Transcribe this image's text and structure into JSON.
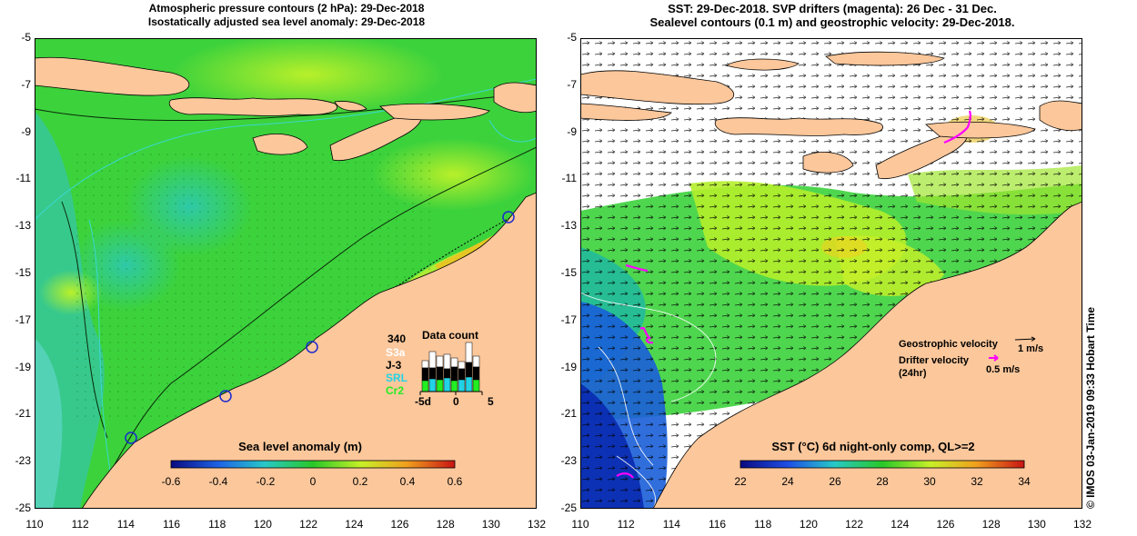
{
  "left_panel": {
    "title_line1": "Atmospheric pressure contours (2 hPa): 29-Dec-2018",
    "title_line2": "Isostatically adjusted sea level anomaly: 29-Dec-2018",
    "colorbar": {
      "label": "Sea level anomaly (m)",
      "ticks": [
        "-0.6",
        "-0.4",
        "-0.2",
        "0",
        "0.2",
        "0.4",
        "0.6"
      ]
    },
    "inset": {
      "title": "Data count",
      "max_label": "340",
      "legend": [
        {
          "label": "S3a",
          "color": "#ffffff"
        },
        {
          "label": "J-3",
          "color": "#000000"
        },
        {
          "label": "SRL",
          "color": "#22d3e6"
        },
        {
          "label": "Cr2",
          "color": "#22ee22"
        }
      ],
      "x_ticks": [
        "-5d",
        "0",
        "5"
      ]
    }
  },
  "right_panel": {
    "title_line1": "SST: 29-Dec-2018. SVP drifters (magenta): 26 Dec - 31 Dec.",
    "title_line2": "Sealevel contours (0.1 m) and geostrophic velocity: 29-Dec-2018.",
    "colorbar": {
      "label": "SST (°C) 6d night-only comp, QL>=2",
      "ticks": [
        "22",
        "24",
        "26",
        "28",
        "30",
        "32",
        "34"
      ]
    },
    "legend": {
      "geostrophic_label": "Geostrophic velocity",
      "geostrophic_scale": "1 m/s",
      "drifter_label": "Drifter velocity",
      "drifter_sublabel": "(24hr)",
      "drifter_scale": "0.5 m/s"
    }
  },
  "axes": {
    "x_ticks": [
      "110",
      "112",
      "114",
      "116",
      "118",
      "120",
      "122",
      "124",
      "126",
      "128",
      "130",
      "132"
    ],
    "y_ticks": [
      "-5",
      "-7",
      "-9",
      "-11",
      "-13",
      "-15",
      "-17",
      "-19",
      "-21",
      "-23",
      "-25"
    ]
  },
  "credit": "© IMOS 03-Jan-2019 09:33 Hobart Time",
  "colors": {
    "land": "#fbc79b",
    "ocean_green": "#3ed43e",
    "ocean_lime": "#a8ee2a",
    "ocean_cyan": "#38c8a0",
    "sst_blue": "#1540c8",
    "drifter": "#ff00ff"
  }
}
